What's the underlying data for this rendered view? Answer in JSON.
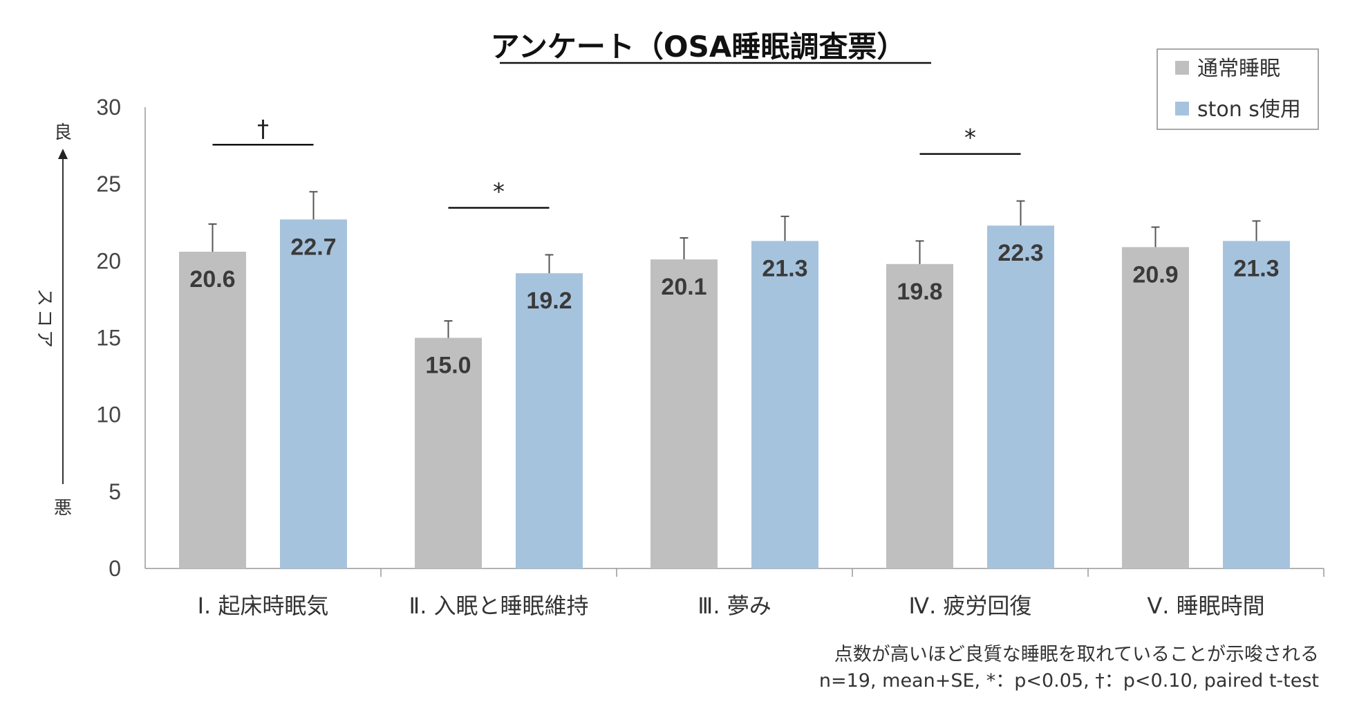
{
  "chart_data": {
    "type": "bar",
    "title": "アンケート（OSA睡眠調査票）",
    "categories": [
      "Ⅰ. 起床時眠気",
      "Ⅱ. 入眠と睡眠維持",
      "Ⅲ. 夢み",
      "Ⅳ. 疲労回復",
      "Ⅴ. 睡眠時間"
    ],
    "series": [
      {
        "name": "通常睡眠",
        "values": [
          20.6,
          15.0,
          20.1,
          19.8,
          20.9
        ],
        "errors": [
          1.8,
          1.1,
          1.4,
          1.5,
          1.3
        ],
        "color": "#bfbfbf"
      },
      {
        "name": "ston s使用",
        "values": [
          22.7,
          19.2,
          21.3,
          22.3,
          21.3
        ],
        "errors": [
          1.8,
          1.2,
          1.6,
          1.6,
          1.3
        ],
        "color": "#a6c3de"
      }
    ],
    "value_labels": [
      [
        "20.6",
        "15.0",
        "20.1",
        "19.8",
        "20.9"
      ],
      [
        "22.7",
        "19.2",
        "21.3",
        "22.3",
        "21.3"
      ]
    ],
    "ylim": [
      0,
      30
    ],
    "yticks": [
      "0",
      "5",
      "10",
      "15",
      "20",
      "25",
      "30"
    ],
    "ylabel": "スコア",
    "y_top_label": "良",
    "y_bottom_label": "悪",
    "significance": [
      {
        "category": 0,
        "mark": "†"
      },
      {
        "category": 1,
        "mark": "*"
      },
      {
        "category": 3,
        "mark": "*"
      }
    ],
    "legend_position": "top-right",
    "grid": false,
    "notes": [
      "点数が高いほど良質な睡眠を取れていることが示唆される",
      "n=19, mean+SE, *：p<0.05, †：p<0.10, paired t-test"
    ]
  }
}
